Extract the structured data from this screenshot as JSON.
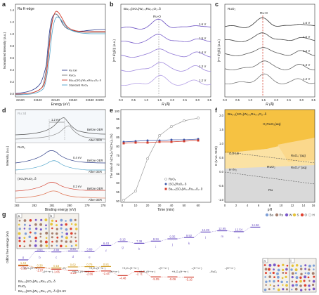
{
  "panels": {
    "a": {
      "letter": "a",
      "tag": "Ru K-edge",
      "xlabel": "Energy (eV)",
      "ylabel": "Normalized intensity (a.u.)",
      "xticks": [
        "22100",
        "22120",
        "22140",
        "22160",
        "22180",
        "22200"
      ],
      "yticks": [
        "0.0",
        "0.2",
        "0.4",
        "0.6",
        "0.8",
        "1.0",
        "1.2",
        "1.4"
      ],
      "legend": [
        "Ru foil",
        "RuO₂",
        "Ba₀.₅(SO₄)W₀.₅Ru₀.₅O₂₋δ",
        "Standard RuO₂"
      ],
      "legend_colors": [
        "#2f3d8f",
        "#7a7a7a",
        "#d23a2a",
        "#4aa1c8"
      ]
    },
    "b": {
      "letter": "b",
      "tag": "Ba₀.₅(SO₄)W₀.₅Ru₀.₅O₂₋δ",
      "bond": "Ru-O",
      "xlabel": "R (Å)",
      "ylabel": "|FT k³χ(k)| (a.u.)",
      "xticks": [
        "0.0",
        "0.5",
        "1.0",
        "1.5",
        "2.0",
        "2.5",
        "3.0",
        "3.5"
      ],
      "voltages": [
        "1.6 V",
        "1.5 V",
        "1.4 V",
        "1.3 V",
        "1.2 V"
      ]
    },
    "c": {
      "letter": "c",
      "tag": "RuO₂",
      "bond": "Ru-O",
      "xlabel": "R (Å)",
      "ylabel": "|FT k³χ(k)| (a.u.)",
      "xticks": [
        "0.0",
        "0.5",
        "1.0",
        "1.5",
        "2.0",
        "2.5",
        "3.0",
        "3.5"
      ],
      "voltages": [
        "1.6 V",
        "1.5 V",
        "1.4 V",
        "1.3 V",
        "1.2 V"
      ]
    },
    "d": {
      "letter": "d",
      "tag": "Ru 3d",
      "xlabel": "Binding energy (eV)",
      "ylabel": "Intensity (a.u.)",
      "xticks": [
        "283",
        "282",
        "281",
        "280",
        "279",
        "278"
      ],
      "groups": [
        {
          "name": "Ba₀.₅(SO₄)W₀.₅Ru₀.₅O₂₋δ",
          "shift": "1.2 eV",
          "before": "Before OER",
          "after": "After OER"
        },
        {
          "name": "RuO₂",
          "shift": "0.4 eV",
          "before": "Before OER",
          "after": "After OER"
        },
        {
          "name": "(SO₄)RuO₂₋δ",
          "shift": "0.2 eV",
          "before": "Before OER",
          "after": "After OER"
        }
      ]
    },
    "e": {
      "letter": "e",
      "xlabel": "Time (min)",
      "ylabel": "The ratio of n(CH₃)ₖ/ n(CH₃)₀ (%)",
      "xticks": [
        "0",
        "10",
        "20",
        "30",
        "40",
        "50",
        "60"
      ],
      "yticks": [
        "50",
        "55",
        "60",
        "65",
        "70",
        "75",
        "80",
        "85",
        "90",
        "95",
        "100"
      ],
      "legend": [
        "RuO₂",
        "(SO₄)RuO₂₋δ",
        "Ba₀.₅(SO₄)W₀.₅Ru₀.₅O₂₋δ"
      ]
    },
    "f": {
      "letter": "f",
      "title": "Ba₀.₅(SO₄)W₀.₅Ru₀.₅O₂₋δ",
      "xlabel": "pH",
      "ylabel": "E (V vs. SHE)",
      "xticks": [
        "0",
        "2",
        "4",
        "6",
        "8",
        "10",
        "12",
        "14",
        "16"
      ],
      "yticks": [
        "-1.0",
        "-0.5",
        "0.0",
        "0.5",
        "1.0",
        "1.5",
        "2.0"
      ],
      "regions": [
        "H₂RuO₅(aq)",
        "RuO₄⁻(aq)",
        "RuO₂",
        "RuO₄²⁻(aq)",
        "Ru"
      ],
      "lines": [
        "O₂/H₂O",
        "H⁺/H₂"
      ]
    },
    "g": {
      "letter": "g",
      "ylabel": "Gibbs free energy (eV)",
      "legend_elements": [
        "Ba",
        "Ru",
        "W",
        "S",
        "O",
        "H"
      ],
      "legend_colors": [
        "#7fa0d8",
        "#a57f6e",
        "#7a58c9",
        "#e6c43a",
        "#e0402e",
        "#f2f2f2"
      ],
      "series_names": [
        "Ba₀.₅(SO₄)W₀.₅Ru₀.₅O₂₋δ",
        "RuO₂",
        "Ba₀.₅(SO₄)W₀.₅Ru₀.₅O₂₋δ @1.6V"
      ],
      "series_colors": [
        "#6a4fc2",
        "#d2a02a",
        "#d23a2a"
      ],
      "purple_values": [
        "0",
        "3.64",
        "3.55",
        "3.94",
        "3.69",
        "6.43",
        "8.15",
        "7.38",
        "8.34",
        "9.35",
        "9.92",
        "12.39",
        "12.95",
        "12.54",
        "14.56"
      ],
      "orange_values": [
        "1.44",
        "0.38",
        "0.16",
        "0.62",
        "0.75",
        "0.81"
      ],
      "red_values": [
        "-0.16",
        "-1.07",
        "-1.65",
        "-2.22",
        "-2.66",
        "-2.44",
        "-4.48",
        "-2.71",
        "-5.05",
        "-5.06",
        "-5.16"
      ],
      "step_letters": [
        "a",
        "b",
        "c",
        "d",
        "e",
        "f",
        "g",
        "h",
        "i",
        "j",
        "k",
        "l",
        "m",
        "n"
      ],
      "step_labels": [
        "+H₂O–(H⁺+e⁻)",
        "–(H⁺+e⁻)",
        "–O₂",
        "+H₂O–(H⁺+e⁻)",
        "+H₂O–(H⁺+e⁻)",
        "–(H⁺+e⁻)",
        "+H₂O–(H⁺+e⁻)",
        "+H₂O–(H⁺+e⁻)",
        "–(H⁺+e⁻)",
        "+H₂O–(H⁺+e⁻)",
        "–(H⁺+e⁻)",
        "–RuO₄",
        "–(H⁺+e⁻)"
      ],
      "slab_labels": [
        "a",
        "b",
        "n",
        "l"
      ]
    }
  }
}
